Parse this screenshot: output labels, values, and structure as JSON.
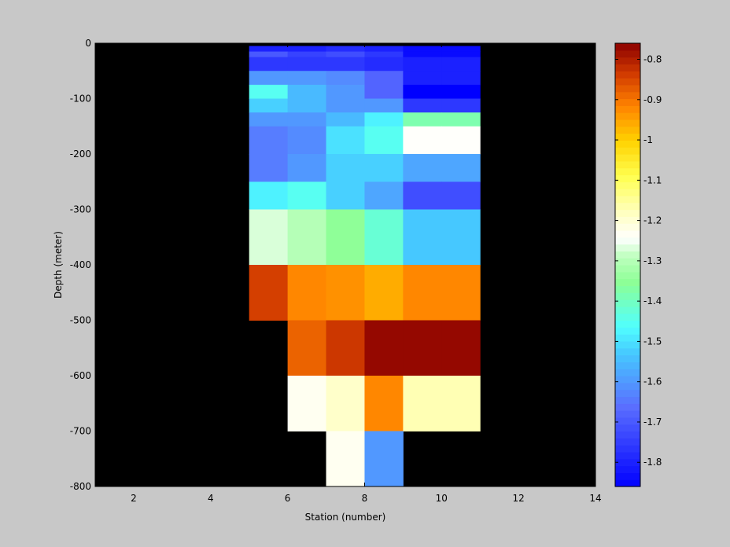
{
  "chart_data": {
    "type": "heatmap",
    "title": "",
    "xlabel": "Station (number)",
    "ylabel": "Depth (meter)",
    "xlim": [
      1,
      14
    ],
    "ylim": [
      -800,
      0
    ],
    "xticks": [
      "2",
      "4",
      "6",
      "8",
      "10",
      "12",
      "14"
    ],
    "yticks": [
      "0",
      "-100",
      "-200",
      "-300",
      "-400",
      "-500",
      "-600",
      "-700",
      "-800"
    ],
    "colorbar": {
      "range": [
        -1.86,
        -0.76
      ],
      "ticks": [
        "-0.8",
        "-0.9",
        "-1",
        "-1.1",
        "-1.2",
        "-1.3",
        "-1.4",
        "-1.5",
        "-1.6",
        "-1.7",
        "-1.8"
      ],
      "colormap": "jet-white-center"
    },
    "background_color": "#000000",
    "x_edges": [
      5,
      6,
      7,
      8,
      9,
      10,
      11
    ],
    "y_edges": [
      -5,
      -15,
      -25,
      -50,
      -75,
      -100,
      -125,
      -150,
      -200,
      -250,
      -300,
      -400,
      -500,
      -600,
      -700,
      -800
    ],
    "values": [
      [
        -1.8,
        -1.8,
        -1.78,
        -1.8,
        -1.84,
        -1.84
      ],
      [
        -1.7,
        -1.74,
        -1.72,
        -1.76,
        -1.84,
        -1.84
      ],
      [
        -1.76,
        -1.76,
        -1.76,
        -1.78,
        -1.8,
        -1.8
      ],
      [
        -1.6,
        -1.6,
        -1.62,
        -1.68,
        -1.8,
        -1.8
      ],
      [
        -1.45,
        -1.55,
        -1.6,
        -1.68,
        -1.86,
        -1.86
      ],
      [
        -1.52,
        -1.55,
        -1.6,
        -1.6,
        -1.76,
        -1.76
      ],
      [
        -1.6,
        -1.6,
        -1.55,
        -1.48,
        -1.38,
        -1.38
      ],
      [
        -1.64,
        -1.62,
        -1.5,
        -1.45,
        -1.24,
        -1.24
      ],
      [
        -1.64,
        -1.6,
        -1.52,
        -1.52,
        -1.58,
        -1.58
      ],
      [
        -1.48,
        -1.45,
        -1.52,
        -1.58,
        -1.72,
        -1.72
      ],
      [
        -1.27,
        -1.3,
        -1.35,
        -1.42,
        -1.53,
        -1.53
      ],
      [
        -0.84,
        -0.92,
        -0.93,
        -0.96,
        -0.92,
        -0.92
      ],
      [
        null,
        -0.88,
        -0.83,
        -0.77,
        -0.77,
        -0.77
      ],
      [
        null,
        -1.23,
        -1.19,
        -0.92,
        -1.17,
        -1.17
      ],
      [
        null,
        null,
        -1.23,
        -1.6,
        null,
        null
      ]
    ]
  }
}
